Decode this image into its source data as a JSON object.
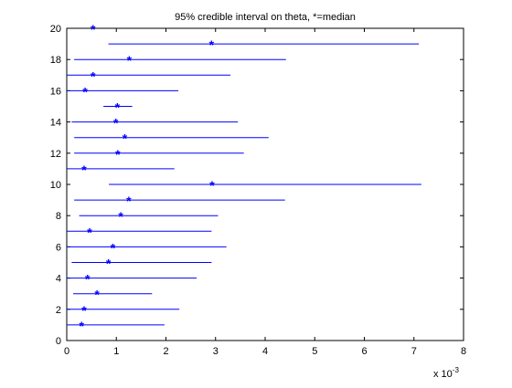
{
  "chart_data": {
    "type": "scatter",
    "title": "95% credible interval on theta, *=median",
    "xlabel": "",
    "ylabel": "",
    "x_scale_label": "x 10",
    "x_scale_exponent": "-3",
    "xlim": [
      0,
      8
    ],
    "ylim": [
      0,
      20
    ],
    "x_ticks": [
      0,
      1,
      2,
      3,
      4,
      5,
      6,
      7,
      8
    ],
    "y_ticks": [
      0,
      2,
      4,
      6,
      8,
      10,
      12,
      14,
      16,
      18,
      20
    ],
    "grid": false,
    "marker": "*",
    "series_color": "#0000ff",
    "intervals": [
      {
        "y": 1,
        "lower": 0.0,
        "upper": 1.97,
        "median": 0.3
      },
      {
        "y": 2,
        "lower": 0.0,
        "upper": 2.27,
        "median": 0.35
      },
      {
        "y": 3,
        "lower": 0.13,
        "upper": 1.72,
        "median": 0.61
      },
      {
        "y": 4,
        "lower": 0.0,
        "upper": 2.62,
        "median": 0.42
      },
      {
        "y": 5,
        "lower": 0.1,
        "upper": 2.92,
        "median": 0.84
      },
      {
        "y": 6,
        "lower": 0.0,
        "upper": 3.22,
        "median": 0.93
      },
      {
        "y": 7,
        "lower": 0.0,
        "upper": 2.92,
        "median": 0.46
      },
      {
        "y": 8,
        "lower": 0.25,
        "upper": 3.05,
        "median": 1.09
      },
      {
        "y": 9,
        "lower": 0.15,
        "upper": 4.4,
        "median": 1.25
      },
      {
        "y": 10,
        "lower": 0.85,
        "upper": 7.15,
        "median": 2.93
      },
      {
        "y": 11,
        "lower": 0.0,
        "upper": 2.17,
        "median": 0.35
      },
      {
        "y": 12,
        "lower": 0.15,
        "upper": 3.57,
        "median": 1.03
      },
      {
        "y": 13,
        "lower": 0.15,
        "upper": 4.07,
        "median": 1.17
      },
      {
        "y": 14,
        "lower": 0.1,
        "upper": 3.45,
        "median": 0.99
      },
      {
        "y": 15,
        "lower": 0.74,
        "upper": 1.32,
        "median": 1.02
      },
      {
        "y": 16,
        "lower": 0.0,
        "upper": 2.25,
        "median": 0.37
      },
      {
        "y": 17,
        "lower": 0.0,
        "upper": 3.3,
        "median": 0.53
      },
      {
        "y": 18,
        "lower": 0.15,
        "upper": 4.42,
        "median": 1.26
      },
      {
        "y": 19,
        "lower": 0.84,
        "upper": 7.1,
        "median": 2.92
      },
      {
        "y": 20,
        "lower": 0.53,
        "upper": 0.53,
        "median": 0.53
      }
    ]
  }
}
